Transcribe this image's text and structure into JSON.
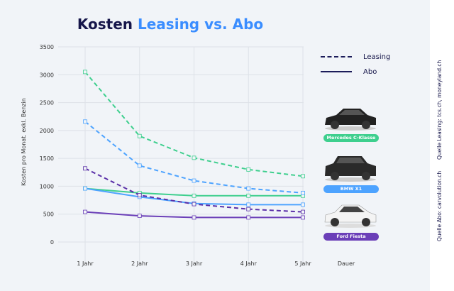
{
  "title": {
    "part1": "Kosten",
    "part2": "Leasing vs. Abo"
  },
  "legend": {
    "leasing": "Leasing",
    "abo": "Abo"
  },
  "cars": [
    {
      "label": "Mercedes C-Klasse",
      "color": "#3ecf8e"
    },
    {
      "label": "BMW X1",
      "color": "#4da3ff"
    },
    {
      "label": "Ford Fiesta",
      "color": "#6b3fb8"
    }
  ],
  "sources": {
    "abo": "Quelle Abo: carvolution.ch",
    "leasing": "Quelle Leasing: tcs.ch, moneyland.ch"
  },
  "chart_data": {
    "type": "line",
    "title": "Kosten Leasing vs. Abo",
    "xlabel": "Dauer",
    "ylabel": "Kosten pro Monat. exkl. Benzin",
    "categories": [
      "1 Jahr",
      "2 Jahr",
      "3 Jahr",
      "4 Jahr",
      "5 Jahr"
    ],
    "ylim": [
      0,
      3500
    ],
    "yticks": [
      0,
      500,
      1000,
      1500,
      2000,
      2500,
      3000,
      3500
    ],
    "grid": true,
    "legend_position": "right",
    "series": [
      {
        "car": "Mercedes C-Klasse",
        "type": "Leasing",
        "color": "#3ecf8e",
        "dashed": true,
        "values": [
          3050,
          1900,
          1510,
          1300,
          1180
        ]
      },
      {
        "car": "Mercedes C-Klasse",
        "type": "Abo",
        "color": "#3ecf8e",
        "dashed": false,
        "values": [
          960,
          880,
          830,
          830,
          830
        ]
      },
      {
        "car": "BMW X1",
        "type": "Leasing",
        "color": "#4da3ff",
        "dashed": true,
        "values": [
          2160,
          1370,
          1100,
          960,
          880
        ]
      },
      {
        "car": "BMW X1",
        "type": "Abo",
        "color": "#4da3ff",
        "dashed": false,
        "values": [
          960,
          810,
          690,
          670,
          670
        ]
      },
      {
        "car": "Ford Fiesta",
        "type": "Leasing",
        "color": "#5a2fa8",
        "dashed": true,
        "values": [
          1320,
          840,
          680,
          590,
          540
        ]
      },
      {
        "car": "Ford Fiesta",
        "type": "Abo",
        "color": "#6b3fb8",
        "dashed": false,
        "values": [
          540,
          470,
          440,
          440,
          440
        ]
      }
    ]
  }
}
